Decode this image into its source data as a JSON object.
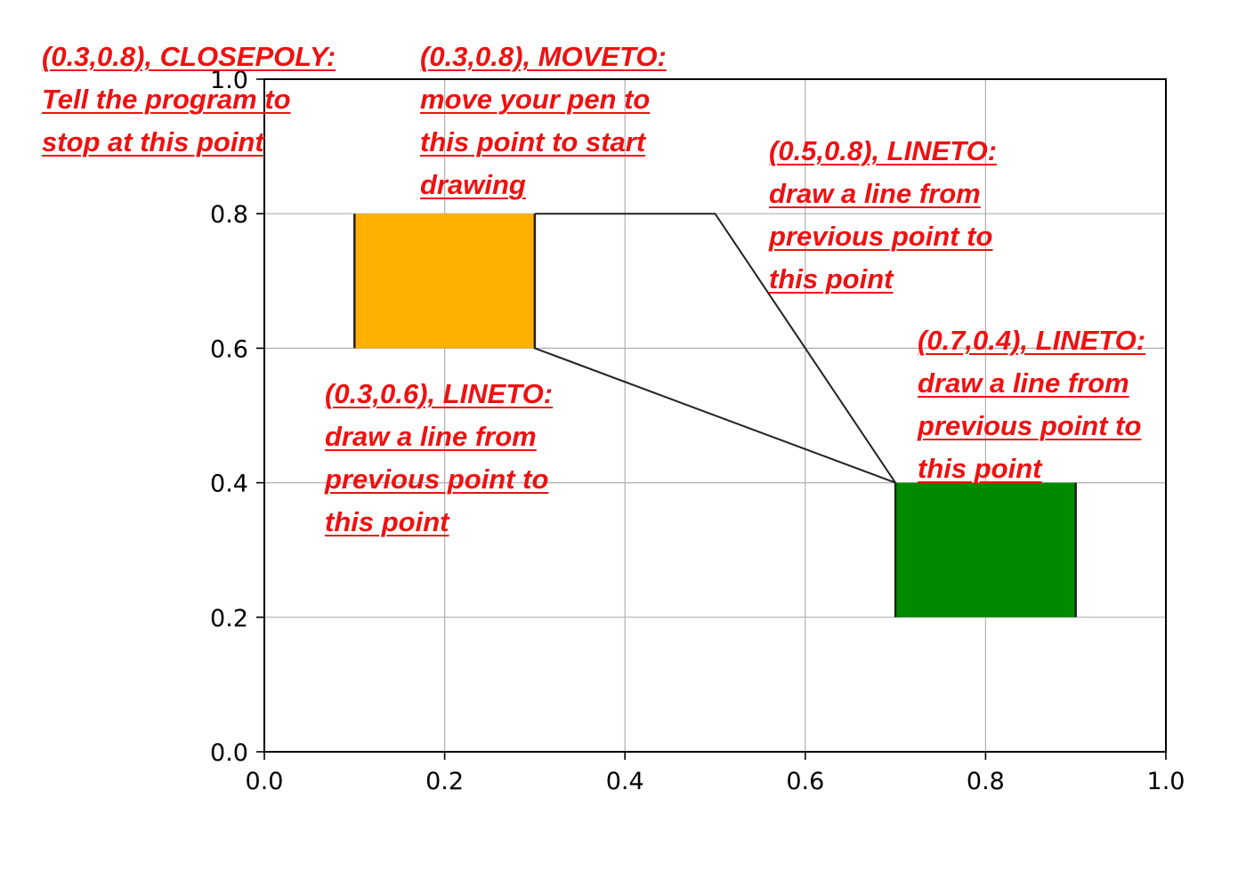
{
  "chart_data": {
    "type": "line",
    "xlim": [
      0.0,
      1.0
    ],
    "ylim": [
      0.0,
      1.0
    ],
    "grid": true,
    "xticks": [
      "0.0",
      "0.2",
      "0.4",
      "0.6",
      "0.8",
      "1.0"
    ],
    "yticks": [
      "0.0",
      "0.2",
      "0.4",
      "0.6",
      "0.8",
      "1.0"
    ],
    "path": {
      "points": [
        [
          0.3,
          0.8
        ],
        [
          0.5,
          0.8
        ],
        [
          0.7,
          0.4
        ],
        [
          0.3,
          0.6
        ],
        [
          0.3,
          0.8
        ]
      ],
      "codes": [
        "MOVETO",
        "LINETO",
        "LINETO",
        "LINETO",
        "CLOSEPOLY"
      ]
    },
    "rectangles": [
      {
        "name": "orange-rectangle",
        "x0": 0.1,
        "x1": 0.3,
        "y0": 0.6,
        "y1": 0.8,
        "color": "#ffb000"
      },
      {
        "name": "green-rectangle",
        "x0": 0.7,
        "x1": 0.9,
        "y0": 0.2,
        "y1": 0.4,
        "color": "#008a00"
      }
    ],
    "annotation_color": "#ee1111",
    "annotations": [
      {
        "id": "closepoly",
        "lines": [
          "(0.3,0.8), CLOSEPOLY:",
          "Tell the program to",
          "stop at this point"
        ]
      },
      {
        "id": "moveto",
        "lines": [
          "(0.3,0.8), MOVETO:",
          "move your pen to",
          "this point to start",
          "drawing"
        ]
      },
      {
        "id": "lineto-05-08",
        "lines": [
          "(0.5,0.8), LINETO:",
          "draw a line from",
          "previous point to",
          "this point"
        ]
      },
      {
        "id": "lineto-07-04",
        "lines": [
          "(0.7,0.4), LINETO:",
          "draw a line from",
          "previous point to",
          "this point"
        ]
      },
      {
        "id": "lineto-03-06",
        "lines": [
          "(0.3,0.6), LINETO:",
          "draw a line from",
          "previous point to",
          "this point"
        ]
      }
    ]
  }
}
